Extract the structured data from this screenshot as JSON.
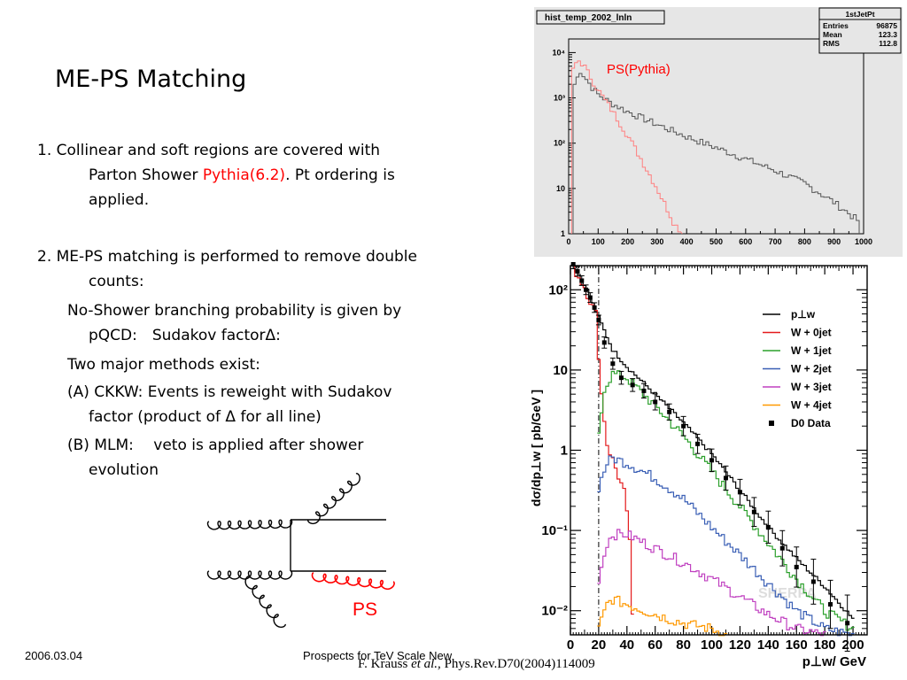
{
  "slide": {
    "title": "ME-PS Matching",
    "item1": {
      "num": "1.",
      "text_a": "Collinear and soft regions are covered with",
      "text_b_pre": "Parton Shower ",
      "text_b_red": "Pythia(6.2)",
      "text_b_post": ". Pt ordering is",
      "text_c": "applied."
    },
    "item2": {
      "num": "2.",
      "text_a": "ME-PS matching is performed to remove double",
      "text_b": "counts:"
    },
    "noshower_a": "No-Shower branching probability is given by",
    "noshower_b": "pQCD:　Sudakov factorΔ:",
    "methods": "Two major methods exist:",
    "ckkw_a": "(A) CKKW:  Events is reweight with Sudakov",
    "ckkw_b": "factor (product of  Δ  for all line)",
    "mlm_a": "(B) MLM:　 veto is applied after shower",
    "mlm_b": "evolution",
    "diagram_label": "PS",
    "footer_date": "2006.03.04",
    "footer_center": "Prospects for TeV Scale New",
    "citation_pre": "F. Krauss ",
    "citation_italic": "et al.,",
    "citation_post": " Phys.Rev.D70(2004)114009"
  },
  "colors": {
    "red": "#ff0000",
    "plot1_bg": "#e6e6e6",
    "plot1_black": "#555555",
    "plot1_red": "#ff8080",
    "w0": "#e41a1c",
    "w1": "#2ca02c",
    "w2": "#3a5fb5",
    "w3": "#c040c0",
    "w4": "#ff9900"
  },
  "chart_data": [
    {
      "type": "line",
      "title": "hist_temp_2002_lnln",
      "annotation": "PS(Pythia)",
      "stats": {
        "name": "1stJetPt",
        "rows": [
          {
            "label": "Entries",
            "value": "96875"
          },
          {
            "label": "Mean",
            "value": "123.3"
          },
          {
            "label": "RMS",
            "value": "112.8"
          }
        ]
      },
      "xlim": [
        0,
        1000
      ],
      "ylim": [
        1,
        20000
      ],
      "yscale": "log",
      "xticks": [
        0,
        100,
        200,
        300,
        400,
        500,
        600,
        700,
        800,
        900,
        1000
      ],
      "yticks": [
        {
          "value": 10,
          "label": "10"
        },
        {
          "value": 100,
          "label": "10²"
        },
        {
          "value": 1000,
          "label": "10³"
        },
        {
          "value": 10000,
          "label": "10⁴"
        }
      ],
      "series": [
        {
          "color": "#555555",
          "points": [
            [
              20,
              2000
            ],
            [
              40,
              4000
            ],
            [
              60,
              2600
            ],
            [
              80,
              1700
            ],
            [
              100,
              1200
            ],
            [
              140,
              800
            ],
            [
              200,
              500
            ],
            [
              300,
              260
            ],
            [
              400,
              140
            ],
            [
              500,
              80
            ],
            [
              600,
              45
            ],
            [
              700,
              25
            ],
            [
              800,
              13
            ],
            [
              900,
              5
            ],
            [
              980,
              2
            ]
          ]
        },
        {
          "color": "#ff8080",
          "points": [
            [
              15,
              4000
            ],
            [
              30,
              7000
            ],
            [
              50,
              5500
            ],
            [
              70,
              3200
            ],
            [
              100,
              1500
            ],
            [
              150,
              500
            ],
            [
              200,
              150
            ],
            [
              250,
              40
            ],
            [
              300,
              10
            ],
            [
              340,
              3
            ],
            [
              360,
              1.6
            ],
            [
              380,
              1.2
            ]
          ]
        }
      ]
    },
    {
      "type": "line",
      "ylabel": "dσ/dp⊥w [ pb/GeV ]",
      "xlabel": "p⊥w/ GeV",
      "xlim": [
        0,
        210
      ],
      "ylim": [
        0.005,
        200
      ],
      "yscale": "log",
      "xticks": [
        0,
        20,
        40,
        60,
        80,
        100,
        120,
        140,
        160,
        180,
        200
      ],
      "yticks": [
        {
          "value": 0.01,
          "label": "10⁻²"
        },
        {
          "value": 0.1,
          "label": "10⁻¹"
        },
        {
          "value": 1,
          "label": "1"
        },
        {
          "value": 10,
          "label": "10"
        },
        {
          "value": 100,
          "label": "10²"
        }
      ],
      "cut_x": 20,
      "watermark": "SHERPA",
      "series": [
        {
          "name": "p⊥w",
          "color": "#000000",
          "points": [
            [
              2,
              200
            ],
            [
              10,
              120
            ],
            [
              20,
              45
            ],
            [
              30,
              18
            ],
            [
              40,
              11
            ],
            [
              60,
              5
            ],
            [
              80,
              2.2
            ],
            [
              100,
              0.9
            ],
            [
              120,
              0.32
            ],
            [
              140,
              0.11
            ],
            [
              160,
              0.045
            ],
            [
              180,
              0.02
            ],
            [
              200,
              0.008
            ]
          ]
        },
        {
          "name": "W + 0jet",
          "color": "#e41a1c",
          "points": [
            [
              2,
              190
            ],
            [
              10,
              110
            ],
            [
              18,
              50
            ],
            [
              22,
              5
            ],
            [
              26,
              1.2
            ],
            [
              32,
              0.6
            ],
            [
              38,
              0.3
            ],
            [
              42,
              0.08
            ],
            [
              44,
              0.008
            ]
          ]
        },
        {
          "name": "W + 1jet",
          "color": "#2ca02c",
          "points": [
            [
              20,
              1.5
            ],
            [
              24,
              6
            ],
            [
              30,
              9
            ],
            [
              40,
              8
            ],
            [
              60,
              3.6
            ],
            [
              80,
              1.5
            ],
            [
              100,
              0.55
            ],
            [
              120,
              0.2
            ],
            [
              140,
              0.07
            ],
            [
              160,
              0.025
            ],
            [
              180,
              0.01
            ],
            [
              200,
              0.006
            ]
          ]
        },
        {
          "name": "W + 2jet",
          "color": "#3a5fb5",
          "points": [
            [
              20,
              0.35
            ],
            [
              26,
              0.7
            ],
            [
              30,
              0.8
            ],
            [
              40,
              0.7
            ],
            [
              60,
              0.45
            ],
            [
              80,
              0.25
            ],
            [
              100,
              0.11
            ],
            [
              120,
              0.05
            ],
            [
              140,
              0.022
            ],
            [
              160,
              0.01
            ],
            [
              180,
              0.006
            ],
            [
              200,
              0.005
            ]
          ]
        },
        {
          "name": "W + 3jet",
          "color": "#c040c0",
          "points": [
            [
              20,
              0.025
            ],
            [
              26,
              0.07
            ],
            [
              30,
              0.09
            ],
            [
              40,
              0.09
            ],
            [
              60,
              0.06
            ],
            [
              80,
              0.04
            ],
            [
              100,
              0.025
            ],
            [
              120,
              0.015
            ],
            [
              140,
              0.009
            ],
            [
              160,
              0.006
            ],
            [
              180,
              0.005
            ]
          ]
        },
        {
          "name": "W + 4jet",
          "color": "#ff9900",
          "points": [
            [
              20,
              0.006
            ],
            [
              26,
              0.012
            ],
            [
              30,
              0.014
            ],
            [
              40,
              0.012
            ],
            [
              60,
              0.009
            ],
            [
              80,
              0.007
            ],
            [
              100,
              0.006
            ],
            [
              110,
              0.005
            ]
          ]
        }
      ],
      "data_series": {
        "name": "D0 Data",
        "points": [
          [
            2,
            210
          ],
          [
            5,
            170
          ],
          [
            8,
            130
          ],
          [
            11,
            100
          ],
          [
            14,
            80
          ],
          [
            17,
            60
          ],
          [
            20,
            42
          ],
          [
            24,
            22
          ],
          [
            30,
            12
          ],
          [
            36,
            8
          ],
          [
            44,
            6.5
          ],
          [
            52,
            5.5
          ],
          [
            60,
            4.0
          ],
          [
            70,
            3.0
          ],
          [
            80,
            2.0
          ],
          [
            90,
            1.2
          ],
          [
            100,
            0.75
          ],
          [
            110,
            0.45
          ],
          [
            120,
            0.3
          ],
          [
            130,
            0.17
          ],
          [
            140,
            0.11
          ],
          [
            150,
            0.06
          ],
          [
            160,
            0.035
          ],
          [
            172,
            0.023
          ],
          [
            184,
            0.012
          ],
          [
            196,
            0.007
          ]
        ],
        "errors": [
          0.06,
          0.06,
          0.06,
          0.06,
          0.06,
          0.06,
          0.06,
          0.07,
          0.07,
          0.08,
          0.08,
          0.09,
          0.1,
          0.1,
          0.12,
          0.12,
          0.14,
          0.15,
          0.16,
          0.18,
          0.2,
          0.22,
          0.25,
          0.28,
          0.3,
          0.35
        ]
      }
    }
  ]
}
